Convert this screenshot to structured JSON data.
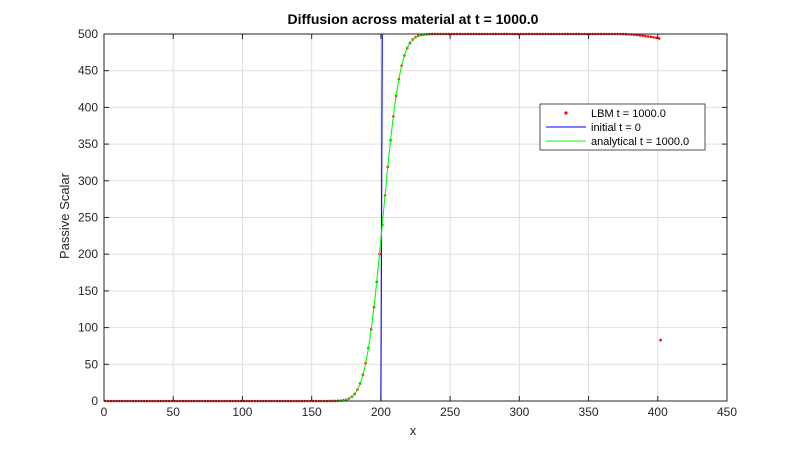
{
  "chart_data": {
    "type": "line",
    "title": "Diffusion across material at t = 1000.0",
    "xlabel": "x",
    "ylabel": "Passive Scalar",
    "xlim": [
      0,
      450
    ],
    "ylim": [
      0,
      500
    ],
    "xticks": [
      0,
      50,
      100,
      150,
      200,
      250,
      300,
      350,
      400,
      450
    ],
    "yticks": [
      0,
      50,
      100,
      150,
      200,
      250,
      300,
      350,
      400,
      450,
      500
    ],
    "grid": true,
    "legend_position": "top-right",
    "series": [
      {
        "name": "LBM t = 1000.0",
        "style": "dots",
        "color": "#ff0000",
        "x_start": 1,
        "x_end": 401,
        "x_step": 2,
        "interface_x": 201.5,
        "plateau": 500,
        "diffusion_width": 14,
        "edge_point": [
          402,
          83
        ],
        "decay_start_x": 370,
        "end_value": 494
      },
      {
        "name": "initial t = 0",
        "style": "line",
        "color": "#0000ff",
        "x": [
          0,
          200,
          201,
          265
        ],
        "y": [
          0,
          0,
          500,
          500
        ]
      },
      {
        "name": "analytical t = 1000.0",
        "style": "line",
        "color": "#00ff00",
        "x_start": 0,
        "x_end": 265,
        "x_step": 1,
        "interface_x": 201.5,
        "plateau": 500,
        "diffusion_width": 14
      }
    ]
  }
}
